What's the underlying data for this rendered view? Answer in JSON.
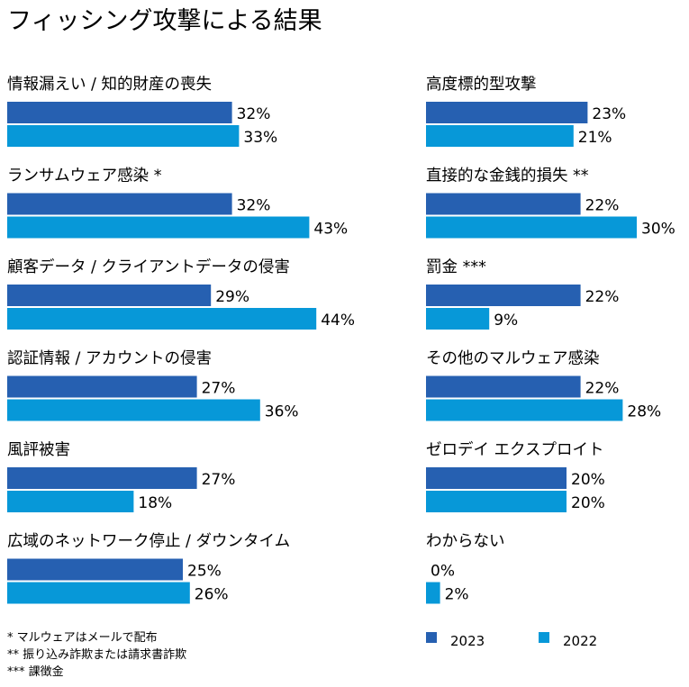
{
  "chart_data": {
    "type": "bar",
    "orientation": "horizontal",
    "title": "フィッシング攻撃による結果",
    "series": [
      {
        "name": "2023",
        "color": "#2660b1"
      },
      {
        "name": "2022",
        "color": "#0798d8"
      }
    ],
    "categories": [
      {
        "label": "情報漏えい / 知的財産の喪失",
        "values": [
          32,
          33
        ],
        "value_labels": [
          "32%",
          "33%"
        ]
      },
      {
        "label": "ランサムウェア感染 *",
        "values": [
          32,
          43
        ],
        "value_labels": [
          "32%",
          "43%"
        ]
      },
      {
        "label": "顧客データ / クライアントデータの侵害",
        "values": [
          29,
          44
        ],
        "value_labels": [
          "29%",
          "44%"
        ]
      },
      {
        "label": "認証情報 / アカウントの侵害",
        "values": [
          27,
          36
        ],
        "value_labels": [
          "27%",
          "36%"
        ]
      },
      {
        "label": "風評被害",
        "values": [
          27,
          18
        ],
        "value_labels": [
          "27%",
          "18%"
        ]
      },
      {
        "label": "広域のネットワーク停止 / ダウンタイム",
        "values": [
          25,
          26
        ],
        "value_labels": [
          "25%",
          "26%"
        ]
      },
      {
        "label": "高度標的型攻撃",
        "values": [
          23,
          21
        ],
        "value_labels": [
          "23%",
          "21%"
        ]
      },
      {
        "label": "直接的な金銭的損失 **",
        "values": [
          22,
          30
        ],
        "value_labels": [
          "22%",
          "30%"
        ]
      },
      {
        "label": "罰金 ***",
        "values": [
          22,
          9
        ],
        "value_labels": [
          "22%",
          "9%"
        ]
      },
      {
        "label": "その他のマルウェア感染",
        "values": [
          22,
          28
        ],
        "value_labels": [
          "22%",
          "28%"
        ]
      },
      {
        "label": "ゼロデイ エクスプロイト",
        "values": [
          20,
          20
        ],
        "value_labels": [
          "20%",
          "20%"
        ]
      },
      {
        "label": "わからない",
        "values": [
          0,
          2
        ],
        "value_labels": [
          "0%",
          "2%"
        ]
      }
    ],
    "footnotes": [
      "* マルウェアはメールで配布",
      "** 振り込み詐欺または請求書詐欺",
      "*** 課徴金"
    ],
    "legend_position": "bottom-right",
    "grid": false
  }
}
